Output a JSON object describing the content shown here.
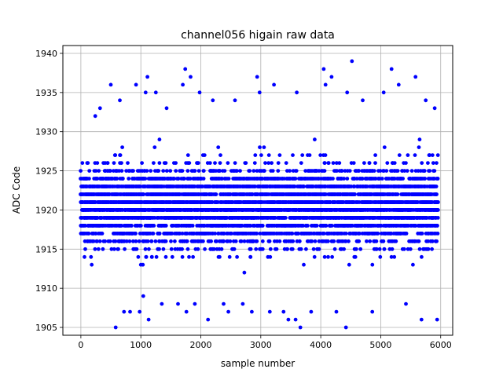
{
  "chart_data": {
    "type": "scatter",
    "title": "channel056 higain raw data",
    "xlabel": "sample number",
    "ylabel": "ADC Code",
    "xlim": [
      -300,
      6200
    ],
    "ylim": [
      1904,
      1941
    ],
    "xticks": [
      0,
      1000,
      2000,
      3000,
      4000,
      5000,
      6000
    ],
    "yticks": [
      1905,
      1910,
      1915,
      1920,
      1925,
      1930,
      1935,
      1940
    ],
    "grid": true,
    "marker_color": "#0000ff",
    "series": [
      {
        "description": "Approximately 6000 samples, one point per sample number 0-5950; dense band 1913-1928 with sparse outliers",
        "sample_count": 5950,
        "value_range": [
          1905,
          1939
        ],
        "dense_range": [
          1913,
          1928
        ],
        "center": 1920.5,
        "outliers": [
          {
            "x": 240,
            "y": 1932
          },
          {
            "x": 320,
            "y": 1933
          },
          {
            "x": 500,
            "y": 1936
          },
          {
            "x": 580,
            "y": 1905
          },
          {
            "x": 650,
            "y": 1934
          },
          {
            "x": 720,
            "y": 1907
          },
          {
            "x": 820,
            "y": 1907
          },
          {
            "x": 920,
            "y": 1936
          },
          {
            "x": 980,
            "y": 1907
          },
          {
            "x": 1040,
            "y": 1909
          },
          {
            "x": 1080,
            "y": 1935
          },
          {
            "x": 1110,
            "y": 1937
          },
          {
            "x": 1130,
            "y": 1906
          },
          {
            "x": 1250,
            "y": 1935
          },
          {
            "x": 1350,
            "y": 1908
          },
          {
            "x": 1430,
            "y": 1933
          },
          {
            "x": 1620,
            "y": 1908
          },
          {
            "x": 1700,
            "y": 1936
          },
          {
            "x": 1740,
            "y": 1938
          },
          {
            "x": 1760,
            "y": 1907
          },
          {
            "x": 1830,
            "y": 1937
          },
          {
            "x": 1900,
            "y": 1908
          },
          {
            "x": 1980,
            "y": 1935
          },
          {
            "x": 2120,
            "y": 1906
          },
          {
            "x": 2200,
            "y": 1934
          },
          {
            "x": 2380,
            "y": 1908
          },
          {
            "x": 2460,
            "y": 1907
          },
          {
            "x": 2570,
            "y": 1934
          },
          {
            "x": 2700,
            "y": 1908
          },
          {
            "x": 2850,
            "y": 1907
          },
          {
            "x": 2940,
            "y": 1937
          },
          {
            "x": 2980,
            "y": 1935
          },
          {
            "x": 3150,
            "y": 1907
          },
          {
            "x": 3220,
            "y": 1936
          },
          {
            "x": 3380,
            "y": 1907
          },
          {
            "x": 3460,
            "y": 1906
          },
          {
            "x": 3580,
            "y": 1906
          },
          {
            "x": 3600,
            "y": 1935
          },
          {
            "x": 3660,
            "y": 1905
          },
          {
            "x": 3840,
            "y": 1907
          },
          {
            "x": 4050,
            "y": 1938
          },
          {
            "x": 4080,
            "y": 1936
          },
          {
            "x": 4180,
            "y": 1937
          },
          {
            "x": 4260,
            "y": 1907
          },
          {
            "x": 4420,
            "y": 1905
          },
          {
            "x": 4440,
            "y": 1935
          },
          {
            "x": 4520,
            "y": 1939
          },
          {
            "x": 4700,
            "y": 1934
          },
          {
            "x": 4860,
            "y": 1907
          },
          {
            "x": 5050,
            "y": 1935
          },
          {
            "x": 5180,
            "y": 1938
          },
          {
            "x": 5300,
            "y": 1936
          },
          {
            "x": 5420,
            "y": 1908
          },
          {
            "x": 5580,
            "y": 1937
          },
          {
            "x": 5680,
            "y": 1906
          },
          {
            "x": 5750,
            "y": 1934
          },
          {
            "x": 5900,
            "y": 1933
          },
          {
            "x": 5940,
            "y": 1906
          }
        ]
      }
    ]
  }
}
